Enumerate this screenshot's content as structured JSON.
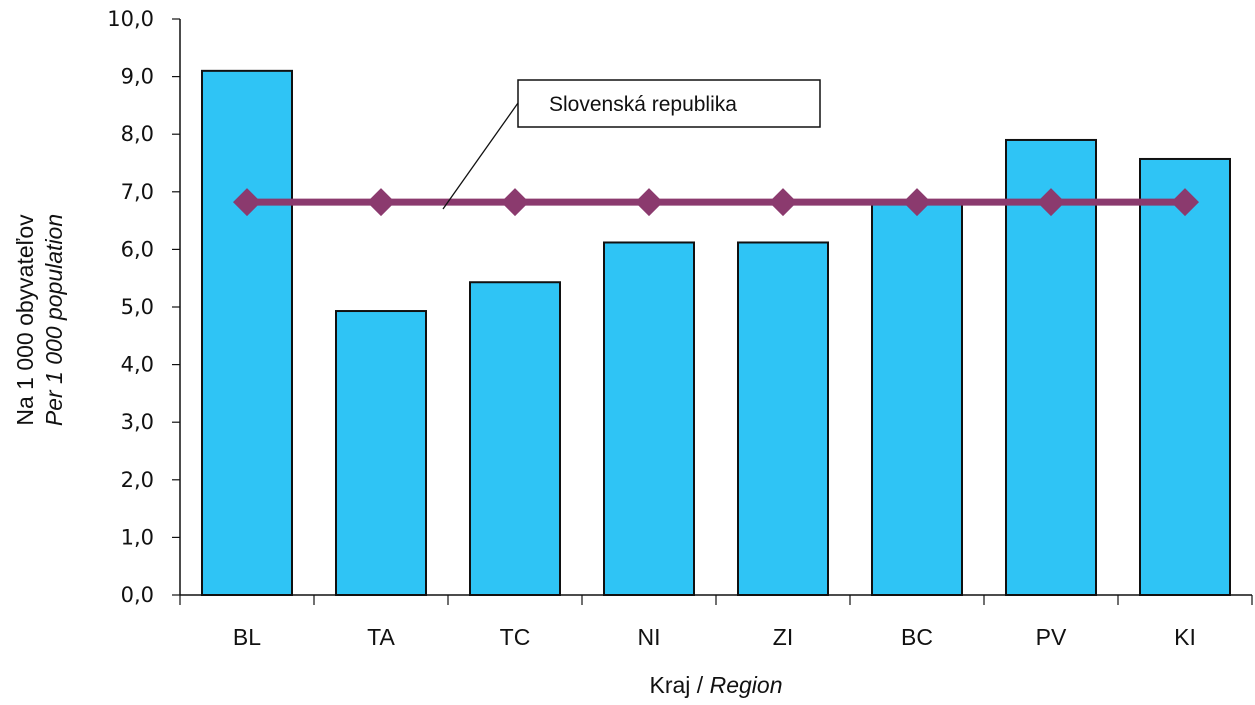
{
  "chart_data": {
    "type": "bar",
    "categories": [
      "BL",
      "TA",
      "TC",
      "NI",
      "ZI",
      "BC",
      "PV",
      "KI"
    ],
    "values": [
      9.1,
      4.93,
      5.43,
      6.12,
      6.12,
      6.82,
      7.9,
      7.57
    ],
    "reference_line": {
      "label": "Slovenská republika",
      "value": 6.82
    },
    "ylim": [
      0,
      10
    ],
    "yticks": [
      "0,0",
      "1,0",
      "2,0",
      "3,0",
      "4,0",
      "5,0",
      "6,0",
      "7,0",
      "8,0",
      "9,0",
      "10,0"
    ],
    "ylabel": {
      "main": "Na 1 000 obyvateľov",
      "italic": "Per 1 000 population"
    },
    "xlabel": {
      "main": "Kraj / ",
      "italic": "Region"
    },
    "colors": {
      "bar": "#2fc4f5",
      "bar_stroke": "#111111",
      "line": "#8b3a6e"
    },
    "grid": false
  }
}
